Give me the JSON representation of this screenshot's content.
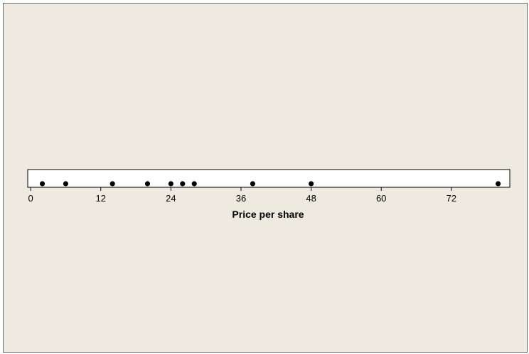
{
  "chart_data": {
    "type": "scatter",
    "subtype": "dotplot",
    "xlabel": "Price per share",
    "x_ticks": [
      "0",
      "12",
      "24",
      "36",
      "48",
      "60",
      "72"
    ],
    "xlim": [
      -0.5,
      82
    ],
    "grid": false,
    "values": [
      2,
      6,
      14,
      20,
      24,
      26,
      28,
      38,
      48,
      80
    ],
    "colors": {
      "background": "#efeae0",
      "plot_area": "#ffffff",
      "points": "#000000",
      "axis": "#000000"
    }
  }
}
